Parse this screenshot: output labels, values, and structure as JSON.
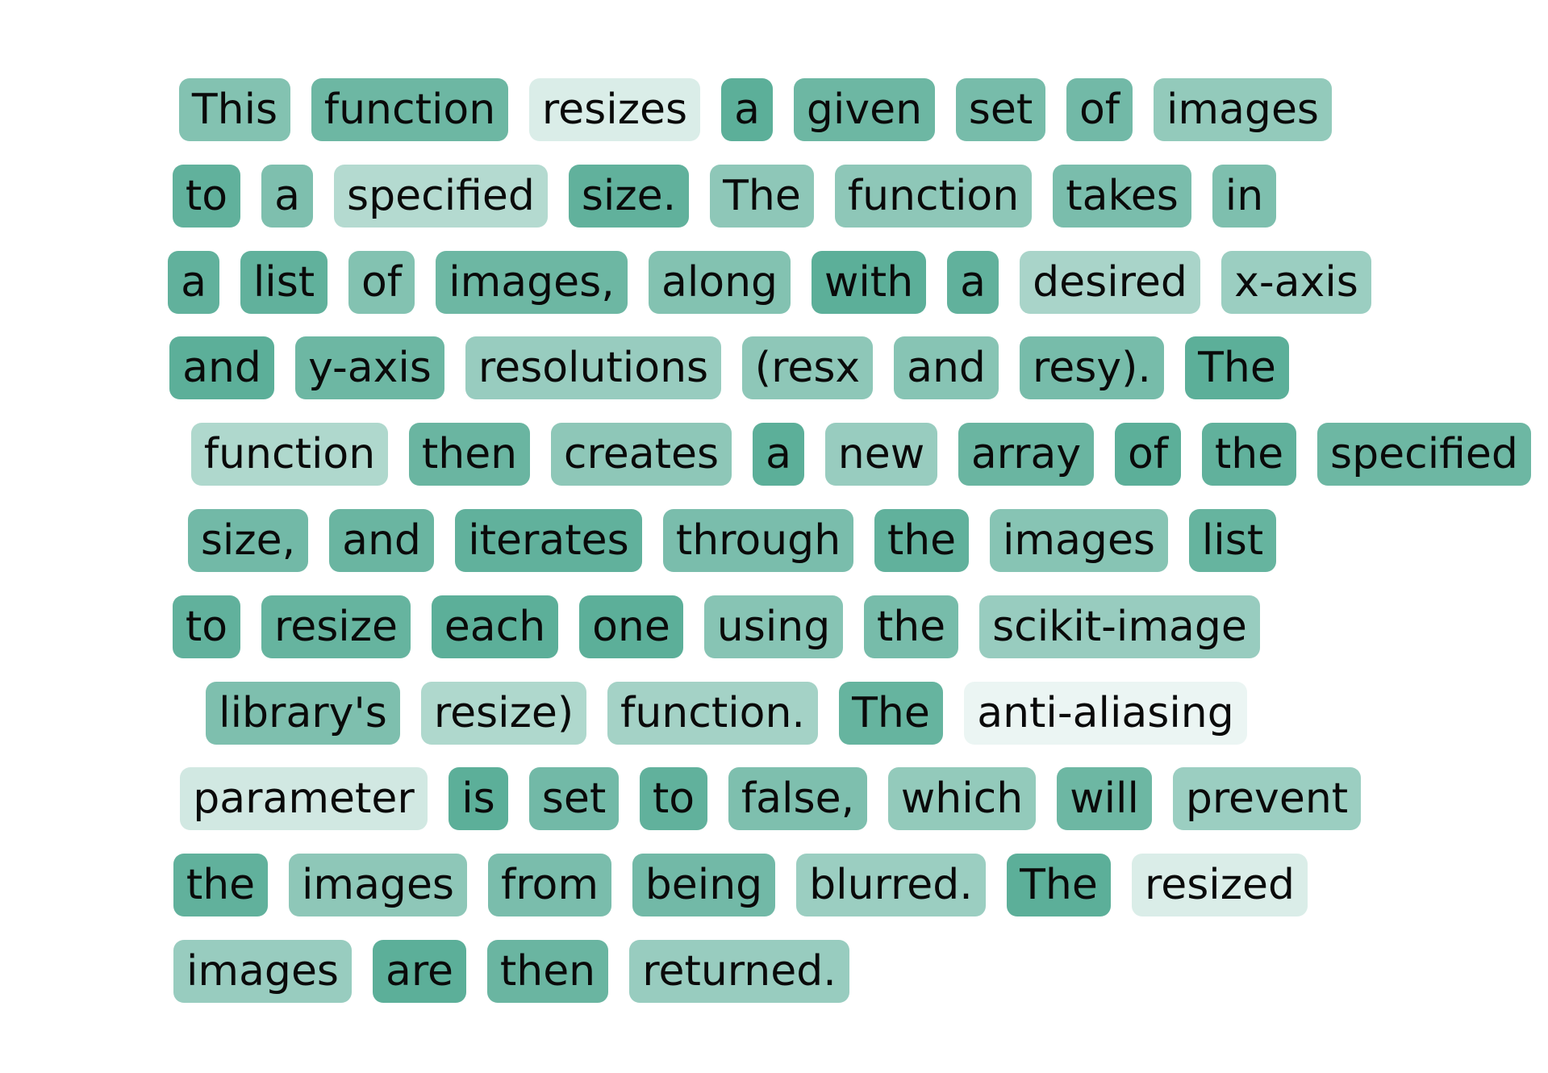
{
  "base_color": "#59ad97",
  "lines": [
    {
      "words": [
        {
          "text": "This",
          "w": 0.75
        },
        {
          "text": "function",
          "w": 0.88
        },
        {
          "text": "resizes",
          "w": 0.22
        },
        {
          "text": "a",
          "w": 0.98
        },
        {
          "text": "given",
          "w": 0.88
        },
        {
          "text": "set",
          "w": 0.82
        },
        {
          "text": "of",
          "w": 0.85
        },
        {
          "text": "images",
          "w": 0.65
        }
      ]
    },
    {
      "words": [
        {
          "text": "to",
          "w": 0.95
        },
        {
          "text": "a",
          "w": 0.78
        },
        {
          "text": "specified",
          "w": 0.45
        },
        {
          "text": "size.",
          "w": 0.95
        },
        {
          "text": "The",
          "w": 0.68
        },
        {
          "text": "function",
          "w": 0.68
        },
        {
          "text": "takes",
          "w": 0.8
        },
        {
          "text": "in",
          "w": 0.78
        }
      ]
    },
    {
      "words": [
        {
          "text": "a",
          "w": 0.95
        },
        {
          "text": "list",
          "w": 0.95
        },
        {
          "text": "of",
          "w": 0.75
        },
        {
          "text": "images,",
          "w": 0.88
        },
        {
          "text": "along",
          "w": 0.75
        },
        {
          "text": "with",
          "w": 0.98
        },
        {
          "text": "a",
          "w": 0.95
        },
        {
          "text": "desired",
          "w": 0.52
        },
        {
          "text": "x-axis",
          "w": 0.6
        }
      ]
    },
    {
      "words": [
        {
          "text": "and",
          "w": 0.98
        },
        {
          "text": "y-axis",
          "w": 0.88
        },
        {
          "text": "resolutions",
          "w": 0.62
        },
        {
          "text": "(resx",
          "w": 0.68
        },
        {
          "text": "and",
          "w": 0.72
        },
        {
          "text": "resy).",
          "w": 0.82
        },
        {
          "text": "The",
          "w": 0.98
        }
      ]
    },
    {
      "words": [
        {
          "text": "function",
          "w": 0.48
        },
        {
          "text": "then",
          "w": 0.9
        },
        {
          "text": "creates",
          "w": 0.68
        },
        {
          "text": "a",
          "w": 0.98
        },
        {
          "text": "new",
          "w": 0.62
        },
        {
          "text": "array",
          "w": 0.9
        },
        {
          "text": "of",
          "w": 0.98
        },
        {
          "text": "the",
          "w": 0.95
        },
        {
          "text": "specified",
          "w": 0.88
        }
      ]
    },
    {
      "words": [
        {
          "text": "size,",
          "w": 0.85
        },
        {
          "text": "and",
          "w": 0.9
        },
        {
          "text": "iterates",
          "w": 0.95
        },
        {
          "text": "through",
          "w": 0.8
        },
        {
          "text": "the",
          "w": 0.95
        },
        {
          "text": "images",
          "w": 0.72
        },
        {
          "text": "list",
          "w": 0.92
        }
      ]
    },
    {
      "words": [
        {
          "text": "to",
          "w": 0.95
        },
        {
          "text": "resize",
          "w": 0.92
        },
        {
          "text": "each",
          "w": 0.98
        },
        {
          "text": "one",
          "w": 0.98
        },
        {
          "text": "using",
          "w": 0.72
        },
        {
          "text": "the",
          "w": 0.82
        },
        {
          "text": "scikit-image",
          "w": 0.62
        }
      ]
    },
    {
      "words": [
        {
          "text": "library's",
          "w": 0.78
        },
        {
          "text": "resize)",
          "w": 0.48
        },
        {
          "text": "function.",
          "w": 0.55
        },
        {
          "text": "The",
          "w": 0.92
        },
        {
          "text": "anti-aliasing",
          "w": 0.12
        }
      ]
    },
    {
      "words": [
        {
          "text": "parameter",
          "w": 0.28
        },
        {
          "text": "is",
          "w": 0.98
        },
        {
          "text": "set",
          "w": 0.85
        },
        {
          "text": "to",
          "w": 0.95
        },
        {
          "text": "false,",
          "w": 0.78
        },
        {
          "text": "which",
          "w": 0.65
        },
        {
          "text": "will",
          "w": 0.88
        },
        {
          "text": "prevent",
          "w": 0.6
        }
      ]
    },
    {
      "words": [
        {
          "text": "the",
          "w": 0.95
        },
        {
          "text": "images",
          "w": 0.68
        },
        {
          "text": "from",
          "w": 0.8
        },
        {
          "text": "being",
          "w": 0.85
        },
        {
          "text": "blurred.",
          "w": 0.6
        },
        {
          "text": "The",
          "w": 0.98
        },
        {
          "text": "resized",
          "w": 0.22
        }
      ]
    },
    {
      "words": [
        {
          "text": "images",
          "w": 0.62
        },
        {
          "text": "are",
          "w": 0.98
        },
        {
          "text": "then",
          "w": 0.9
        },
        {
          "text": "returned.",
          "w": 0.62
        }
      ]
    }
  ]
}
